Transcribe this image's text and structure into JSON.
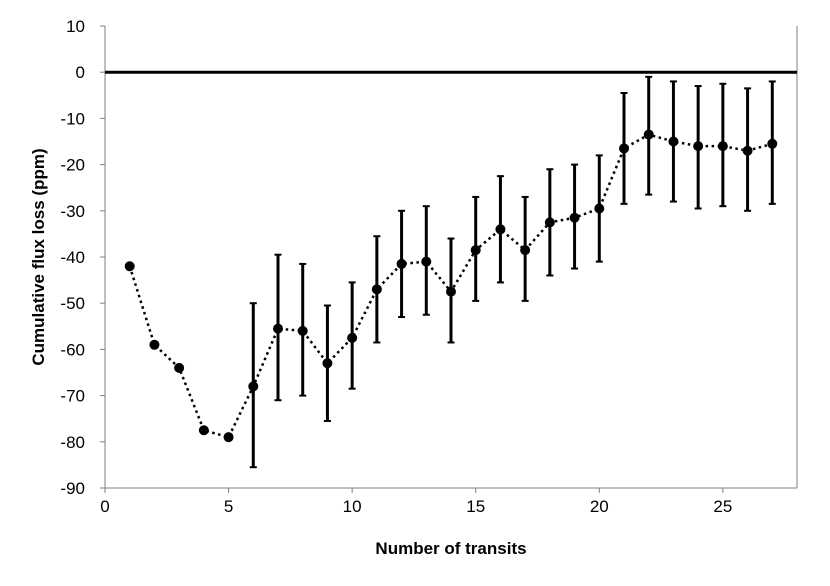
{
  "chart_data": {
    "type": "scatter",
    "title": "",
    "xlabel": "Number of transits",
    "ylabel": "Cumulative flux loss (ppm)",
    "xlim": [
      0,
      28
    ],
    "ylim": [
      -90,
      10
    ],
    "x_ticks": [
      0,
      5,
      10,
      15,
      20,
      25
    ],
    "y_ticks": [
      10,
      0,
      -10,
      -20,
      -30,
      -40,
      -50,
      -60,
      -70,
      -80,
      -90
    ],
    "grid": false,
    "legend": "none",
    "line_style": "dotted",
    "reference_line_y": 0,
    "color": "#000000",
    "series": [
      {
        "x": [
          1,
          2,
          3,
          4,
          5,
          6,
          7,
          8,
          9,
          10,
          11,
          12,
          13,
          14,
          15,
          16,
          17,
          18,
          19,
          20,
          21,
          22,
          23,
          24,
          25,
          26,
          27
        ],
        "y": [
          -42,
          -59,
          -64,
          -77.5,
          -79,
          -68,
          -55.5,
          -56,
          -63,
          -57.5,
          -47,
          -41.5,
          -41,
          -47.5,
          -38.5,
          -34,
          -38.5,
          -32.5,
          -31.5,
          -29.5,
          -16.5,
          -13.5,
          -15,
          -16,
          -16,
          -17,
          -15.5
        ],
        "y_err_low": [
          null,
          null,
          null,
          null,
          null,
          -85.5,
          -71,
          -70,
          -75.5,
          -68.5,
          -58.5,
          -53,
          -52.5,
          -58.5,
          -49.5,
          -45.5,
          -49.5,
          -44,
          -42.5,
          -41,
          -28.5,
          -26.5,
          -28,
          -29.5,
          -29,
          -30,
          -28.5
        ],
        "y_err_high": [
          null,
          null,
          null,
          null,
          null,
          -50,
          -39.5,
          -41.5,
          -50.5,
          -45.5,
          -35.5,
          -30,
          -29,
          -36,
          -27,
          -22.5,
          -27,
          -21,
          -20,
          -18,
          -4.5,
          -1,
          -2,
          -3,
          -2.5,
          -3.5,
          -2
        ]
      }
    ]
  }
}
